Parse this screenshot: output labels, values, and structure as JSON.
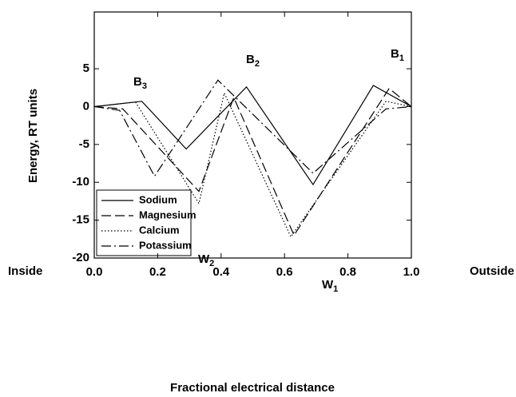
{
  "chart_data": {
    "type": "line",
    "xlabel": "Fractional electrical distance",
    "ylabel": "Energy, RT units",
    "left_label": "Inside",
    "right_label": "Outside",
    "xlim": [
      0,
      1
    ],
    "ylim": [
      -20,
      12.5
    ],
    "xticks": [
      {
        "value": 0,
        "label": "0.0"
      },
      {
        "value": 0.2,
        "label": "0.2"
      },
      {
        "value": 0.4,
        "label": "0.4"
      },
      {
        "value": 0.6,
        "label": "0.6"
      },
      {
        "value": 0.8,
        "label": "0.8"
      },
      {
        "value": 1,
        "label": "1.0"
      }
    ],
    "yticks": [
      -20,
      -15,
      -10,
      -5,
      0,
      5
    ],
    "legend": "lower left",
    "annotations": [
      {
        "text": "B",
        "sub": "3"
      },
      {
        "text": "B",
        "sub": "2"
      },
      {
        "text": "B",
        "sub": "1"
      },
      {
        "text": "W",
        "sub": "2"
      },
      {
        "text": "W",
        "sub": "1"
      }
    ],
    "series": [
      {
        "name": "Sodium",
        "color": "#000000",
        "dash": "solid",
        "x": [
          0,
          0.15,
          0.29,
          0.48,
          0.69,
          0.88,
          1.0
        ],
        "values": [
          0,
          0.7,
          -5.6,
          2.6,
          -10.3,
          2.8,
          0
        ]
      },
      {
        "name": "Magnesium",
        "color": "#000000",
        "dash": "dashed",
        "x": [
          0,
          0.09,
          0.33,
          0.44,
          0.63,
          0.93,
          1.0
        ],
        "values": [
          0,
          -0.3,
          -11.2,
          1.2,
          -17,
          2.4,
          0
        ]
      },
      {
        "name": "Calcium",
        "color": "#000000",
        "dash": "dotted",
        "x": [
          0,
          0.13,
          0.33,
          0.41,
          0.62,
          0.92,
          1.0
        ],
        "values": [
          0,
          0.6,
          -12.8,
          1.8,
          -17.2,
          0.7,
          0
        ]
      },
      {
        "name": "Potassium",
        "color": "#000000",
        "dash": "dashdot",
        "x": [
          0,
          0.08,
          0.19,
          0.39,
          0.69,
          0.92,
          1.0
        ],
        "values": [
          0,
          -0.5,
          -9.2,
          3.5,
          -8.8,
          -0.3,
          0
        ]
      }
    ]
  }
}
